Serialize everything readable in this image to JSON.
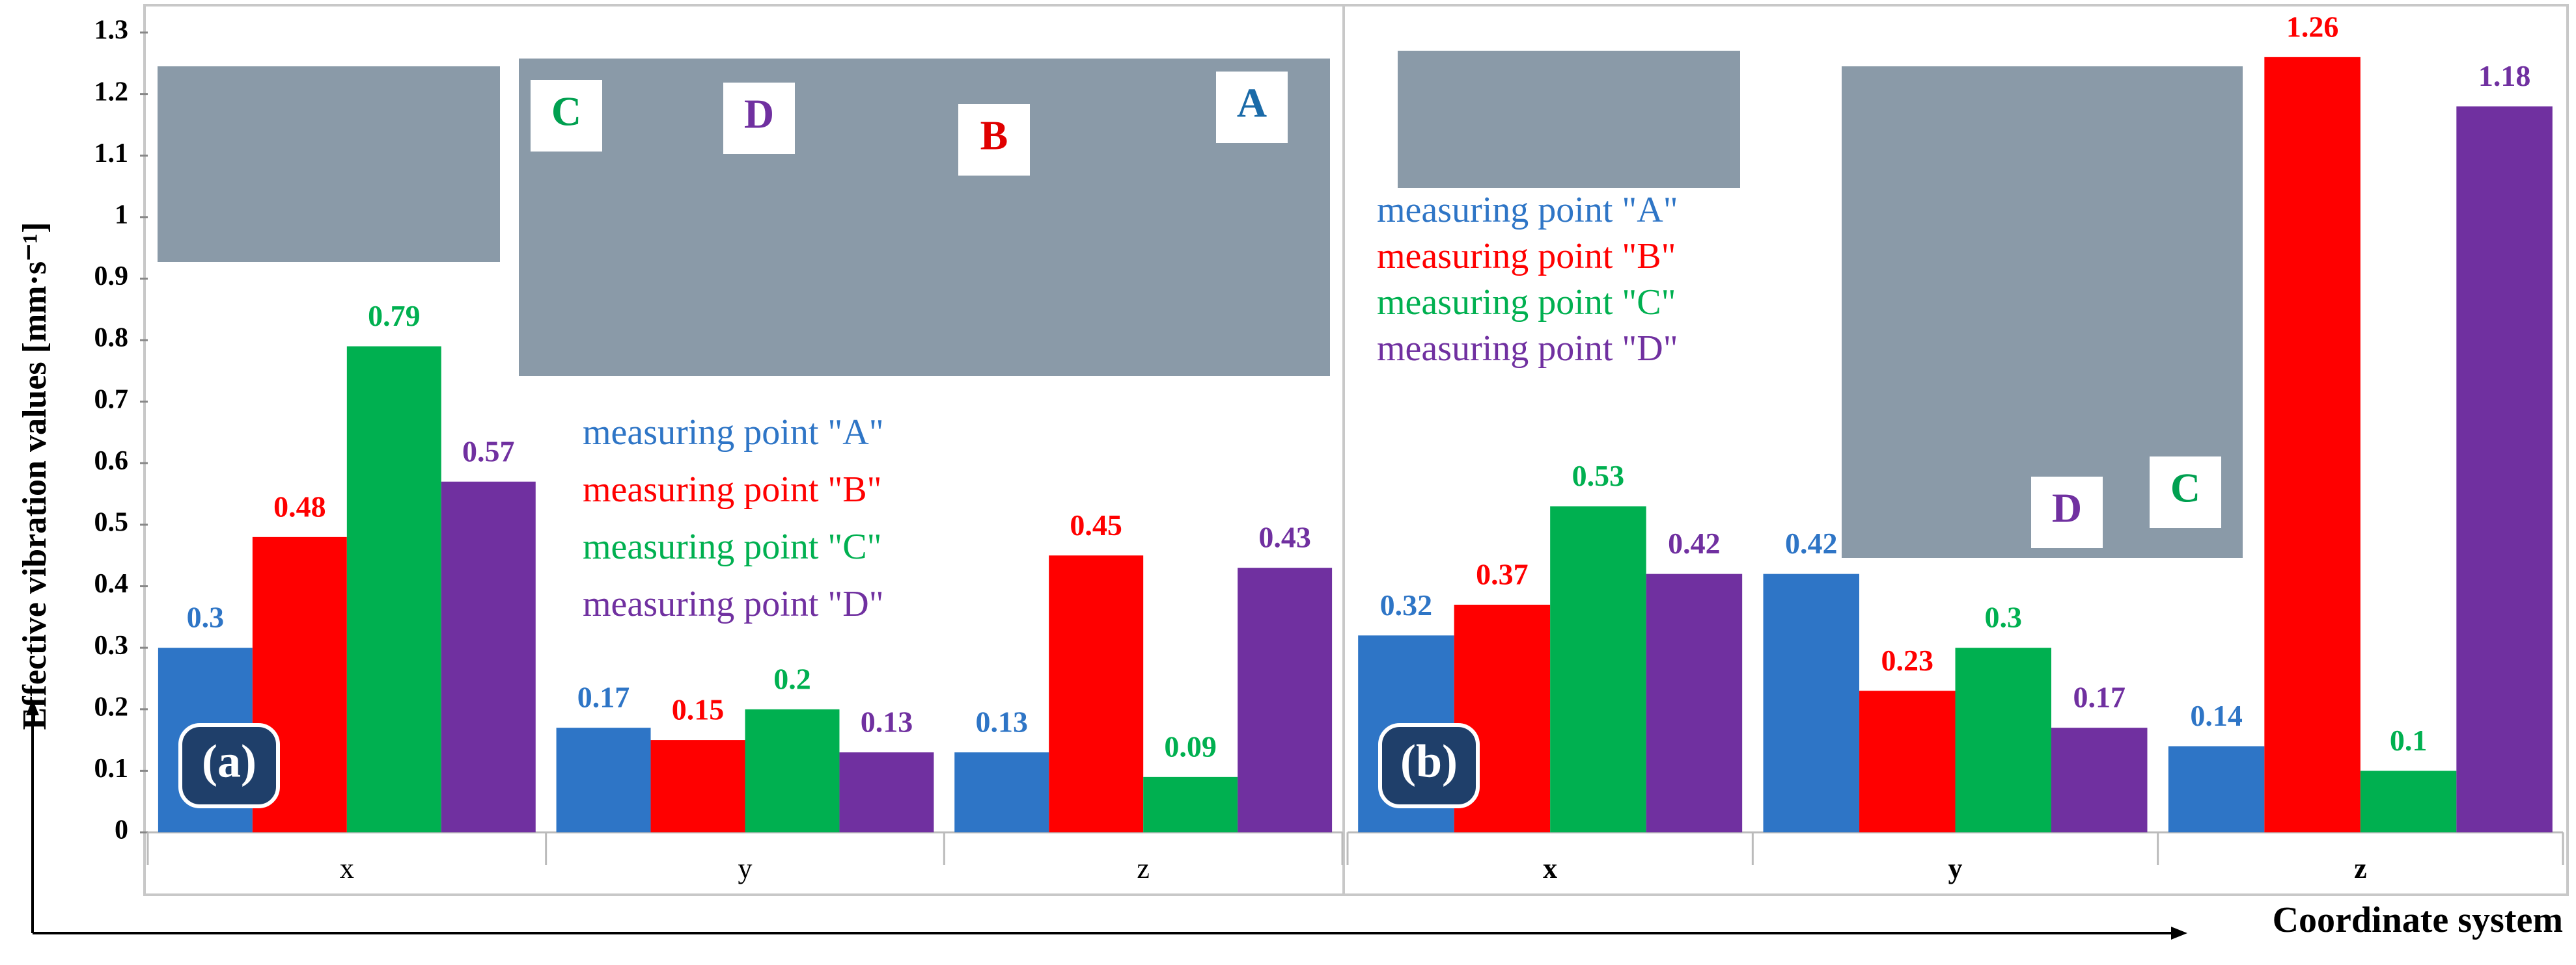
{
  "chart_data": [
    {
      "type": "bar",
      "label": "(a)",
      "ylabel": "Effective vibration values [mm·s⁻¹]",
      "categories": [
        "x",
        "y",
        "z"
      ],
      "series": [
        {
          "name": "measuring point \"A\"",
          "color": "#2e75c6",
          "values": [
            0.3,
            0.17,
            0.13
          ]
        },
        {
          "name": "measuring point \"B\"",
          "color": "#ff0000",
          "values": [
            0.48,
            0.15,
            0.45
          ]
        },
        {
          "name": "measuring point \"C\"",
          "color": "#00b050",
          "values": [
            0.79,
            0.2,
            0.09
          ]
        },
        {
          "name": "measuring point \"D\"",
          "color": "#7030a0",
          "values": [
            0.57,
            0.13,
            0.43
          ]
        }
      ],
      "ylim": [
        0,
        1.3
      ],
      "yticks": [
        0,
        0.1,
        0.2,
        0.3,
        0.4,
        0.5,
        0.6,
        0.7,
        0.8,
        0.9,
        1,
        1.1,
        1.2,
        1.3
      ],
      "annotations": [
        {
          "text": "C",
          "color": "#00a050"
        },
        {
          "text": "D",
          "color": "#7030a0"
        },
        {
          "text": "B",
          "color": "#e00000"
        },
        {
          "text": "A",
          "color": "#1a6aa8"
        }
      ]
    },
    {
      "type": "bar",
      "label": "(b)",
      "xlabel": "Coordinate system",
      "categories": [
        "x",
        "y",
        "z"
      ],
      "series": [
        {
          "name": "measuring point \"A\"",
          "color": "#2e75c6",
          "values": [
            0.32,
            0.42,
            0.14
          ]
        },
        {
          "name": "measuring point \"B\"",
          "color": "#ff0000",
          "values": [
            0.37,
            0.23,
            1.26
          ]
        },
        {
          "name": "measuring point \"C\"",
          "color": "#00b050",
          "values": [
            0.53,
            0.3,
            0.1
          ]
        },
        {
          "name": "measuring point \"D\"",
          "color": "#7030a0",
          "values": [
            0.42,
            0.17,
            1.18
          ]
        }
      ],
      "ylim": [
        0,
        1.3
      ],
      "annotations": [
        {
          "text": "D",
          "color": "#7030a0"
        },
        {
          "text": "C",
          "color": "#00a050"
        }
      ]
    }
  ]
}
